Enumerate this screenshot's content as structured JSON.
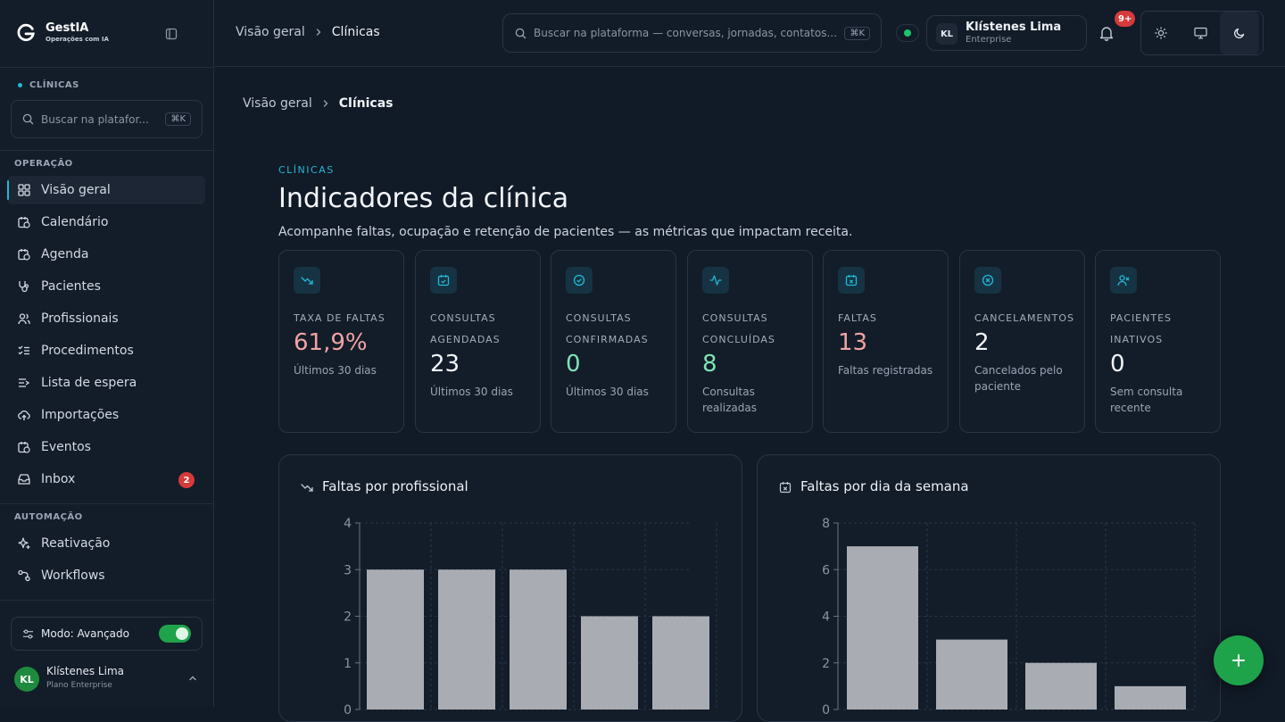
{
  "brand": {
    "name": "GestIA",
    "tagline": "Operações com IA"
  },
  "sidebar": {
    "context_label": "CLÍNICAS",
    "search": {
      "placeholder": "Buscar na platafor...",
      "shortcut": "⌘K"
    },
    "groups": [
      {
        "label": "OPERAÇÃO"
      },
      {
        "label": "AUTOMAÇÃO"
      }
    ],
    "items": [
      {
        "label": "Visão geral",
        "icon": "grid-icon",
        "active": true
      },
      {
        "label": "Calendário",
        "icon": "calendar-clock-icon"
      },
      {
        "label": "Agenda",
        "icon": "calendar-clock-icon"
      },
      {
        "label": "Pacientes",
        "icon": "stethoscope-icon"
      },
      {
        "label": "Profissionais",
        "icon": "users-icon"
      },
      {
        "label": "Procedimentos",
        "icon": "list-checks-icon"
      },
      {
        "label": "Lista de espera",
        "icon": "list-arrow-icon"
      },
      {
        "label": "Importações",
        "icon": "cloud-upload-icon"
      },
      {
        "label": "Eventos",
        "icon": "calendar-clock-icon"
      },
      {
        "label": "Inbox",
        "icon": "inbox-icon",
        "badge": "2"
      },
      {
        "label": "Reativação",
        "icon": "sparkles-icon"
      },
      {
        "label": "Workflows",
        "icon": "workflow-icon"
      }
    ],
    "mode": {
      "label": "Modo: Avançado",
      "enabled": true
    },
    "user": {
      "initials": "KL",
      "name": "Klístenes Lima",
      "plan": "Plano Enterprise"
    }
  },
  "topbar": {
    "breadcrumb": [
      "Visão geral",
      "Clínicas"
    ],
    "search": {
      "placeholder": "Buscar na plataforma — conversas, jornadas, contatos...",
      "shortcut": "⌘K"
    },
    "user": {
      "initials": "KL",
      "name": "Klístenes Lima",
      "plan": "Enterprise"
    },
    "notifications_badge": "9+",
    "theme_options": [
      "sun-icon",
      "monitor-icon",
      "moon-icon"
    ],
    "theme_selected": "moon-icon"
  },
  "main": {
    "breadcrumb": [
      "Visão geral",
      "Clínicas"
    ],
    "eyebrow": "CLÍNICAS",
    "title": "Indicadores da clínica",
    "description": "Acompanhe faltas, ocupação e retenção de pacientes — as métricas que impactam receita."
  },
  "kpis": [
    {
      "label": "TAXA DE FALTAS",
      "value": "61,9%",
      "sub": "Últimos 30 dias",
      "icon": "trending-down-icon",
      "color": "#f0a3a3"
    },
    {
      "label": "CONSULTAS AGENDADAS",
      "value": "23",
      "sub": "Últimos 30 dias",
      "icon": "calendar-check-icon",
      "color": "#f1f4f8"
    },
    {
      "label": "CONSULTAS CONFIRMADAS",
      "value": "0",
      "sub": "Últimos 30 dias",
      "icon": "circle-check-icon",
      "color": "#7de3b5"
    },
    {
      "label": "CONSULTAS CONCLUÍDAS",
      "value": "8",
      "sub": "Consultas realizadas",
      "icon": "activity-icon",
      "color": "#7de3b5"
    },
    {
      "label": "FALTAS",
      "value": "13",
      "sub": "Faltas registradas",
      "icon": "calendar-x-icon",
      "color": "#f0a3a3"
    },
    {
      "label": "CANCELAMENTOS",
      "value": "2",
      "sub": "Cancelados pelo paciente",
      "icon": "circle-x-icon",
      "color": "#f1f4f8"
    },
    {
      "label": "PACIENTES INATIVOS",
      "value": "0",
      "sub": "Sem consulta recente",
      "icon": "user-x-icon",
      "color": "#f1f4f8"
    }
  ],
  "chart_data": [
    {
      "type": "bar",
      "title": "Faltas por profissional",
      "categories": [
        "",
        "",
        "",
        "",
        ""
      ],
      "values": [
        3,
        3,
        3,
        2,
        2
      ],
      "ylim": [
        0,
        4
      ],
      "yticks": [
        0,
        1,
        2,
        3,
        4
      ],
      "grid": true,
      "bar_color": "#a9adb3"
    },
    {
      "type": "bar",
      "title": "Faltas por dia da semana",
      "categories": [
        "",
        "",
        "",
        ""
      ],
      "values": [
        7,
        3,
        2,
        1
      ],
      "ylim": [
        0,
        8
      ],
      "yticks": [
        0,
        2,
        4,
        6,
        8
      ],
      "grid": true,
      "bar_color": "#a9adb3"
    }
  ],
  "colors": {
    "accent": "#22b8d6",
    "success": "#1fa34a",
    "danger": "#d63a3a",
    "background": "#111a27"
  }
}
